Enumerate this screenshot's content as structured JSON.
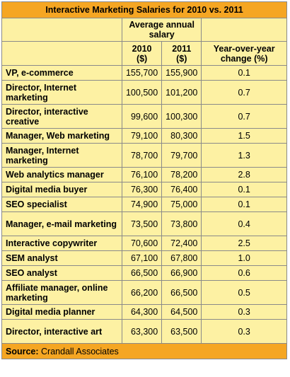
{
  "chart_data": {
    "type": "table",
    "title": "Interactive Marketing Salaries for 2010 vs. 2011",
    "group_header": "Average annual salary",
    "columns": [
      "2010 ($)",
      "2011 ($)",
      "Year-over-year change (%)"
    ],
    "rows": [
      {
        "label": "VP, e-commerce",
        "y2010": "155,700",
        "y2011": "155,900",
        "change": "0.1"
      },
      {
        "label": "Director, Internet marketing",
        "y2010": "100,500",
        "y2011": "101,200",
        "change": "0.7"
      },
      {
        "label": "Director, interactive creative",
        "y2010": "99,600",
        "y2011": "100,300",
        "change": "0.7"
      },
      {
        "label": "Manager, Web marketing",
        "y2010": "79,100",
        "y2011": "80,300",
        "change": "1.5"
      },
      {
        "label": "Manager, Internet marketing",
        "y2010": "78,700",
        "y2011": "79,700",
        "change": "1.3"
      },
      {
        "label": "Web analytics manager",
        "y2010": "76,100",
        "y2011": "78,200",
        "change": "2.8"
      },
      {
        "label": "Digital media buyer",
        "y2010": "76,300",
        "y2011": "76,400",
        "change": "0.1"
      },
      {
        "label": "SEO specialist",
        "y2010": "74,900",
        "y2011": "75,000",
        "change": "0.1"
      },
      {
        "label": "Manager, e-mail marketing",
        "y2010": "73,500",
        "y2011": "73,800",
        "change": "0.4"
      },
      {
        "label": "Interactive copywriter",
        "y2010": "70,600",
        "y2011": "72,400",
        "change": "2.5"
      },
      {
        "label": "SEM analyst",
        "y2010": "67,100",
        "y2011": "67,800",
        "change": "1.0"
      },
      {
        "label": "SEO analyst",
        "y2010": "66,500",
        "y2011": "66,900",
        "change": "0.6"
      },
      {
        "label": "Affiliate manager, online marketing",
        "y2010": "66,200",
        "y2011": "66,500",
        "change": "0.5"
      },
      {
        "label": "Digital media planner",
        "y2010": "64,300",
        "y2011": "64,500",
        "change": "0.3"
      },
      {
        "label": "Director, interactive art",
        "y2010": "63,300",
        "y2011": "63,500",
        "change": "0.3"
      }
    ],
    "source_label": "Source:",
    "source_text": "Crandall Associates"
  },
  "colors": {
    "header_orange": "#f5a623",
    "body_yellow": "#fdf1a3",
    "border": "#8a8a8a"
  }
}
